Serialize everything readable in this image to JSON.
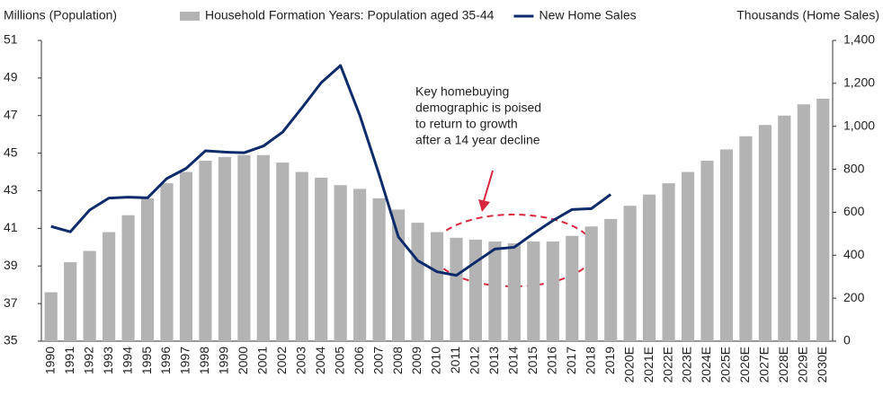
{
  "chart_data": {
    "type": "bar_line",
    "y_label": "Millions (Population)",
    "y2_label": "Thousands (Home Sales)",
    "categories": [
      "1990",
      "1991",
      "1992",
      "1993",
      "1994",
      "1995",
      "1996",
      "1997",
      "1998",
      "1999",
      "2000",
      "2001",
      "2002",
      "2003",
      "2004",
      "2005",
      "2006",
      "2007",
      "2008",
      "2009",
      "2010",
      "2011",
      "2012",
      "2013",
      "2014",
      "2015",
      "2016",
      "2017",
      "2018",
      "2019",
      "2020E",
      "2021E",
      "2022E",
      "2023E",
      "2024E",
      "2025E",
      "2026E",
      "2027E",
      "2028E",
      "2029E",
      "2030E"
    ],
    "series": [
      {
        "name": "Household Formation Years: Population aged 35-44",
        "type": "bar",
        "color": "#b3b3b3",
        "values": [
          37.6,
          39.2,
          39.8,
          40.8,
          41.7,
          42.6,
          43.4,
          44.0,
          44.6,
          44.8,
          44.9,
          44.9,
          44.5,
          44.0,
          43.7,
          43.3,
          43.1,
          42.6,
          42.0,
          41.3,
          40.8,
          40.5,
          40.4,
          40.3,
          40.2,
          40.3,
          40.3,
          40.6,
          41.1,
          41.5,
          42.2,
          42.8,
          43.4,
          44.0,
          44.6,
          45.2,
          45.9,
          46.5,
          47.0,
          47.6,
          47.9
        ]
      },
      {
        "name": "New Home Sales",
        "type": "line",
        "axis": "y2",
        "color": "#0d2b6b",
        "values": [
          534,
          509,
          610,
          666,
          670,
          667,
          757,
          804,
          886,
          880,
          877,
          908,
          973,
          1086,
          1203,
          1283,
          1051,
          776,
          485,
          375,
          323,
          306,
          368,
          429,
          437,
          501,
          561,
          613,
          617,
          683,
          null,
          null,
          null,
          null,
          null,
          null,
          null,
          null,
          null,
          null,
          null
        ]
      }
    ],
    "ylim": [
      35,
      51
    ],
    "yticks": [
      35,
      37,
      39,
      41,
      43,
      45,
      47,
      49,
      51
    ],
    "y2lim": [
      0,
      1400
    ],
    "y2ticks": [
      0,
      200,
      400,
      600,
      800,
      {
        "value": 1000,
        "label": "1,000"
      },
      {
        "value": 1200,
        "label": "1,200"
      },
      {
        "value": 1400,
        "label": "1,400"
      }
    ],
    "annotation": [
      "Key homebuying",
      "demographic is poised",
      "to return to growth",
      "after a 14 year decline"
    ]
  }
}
